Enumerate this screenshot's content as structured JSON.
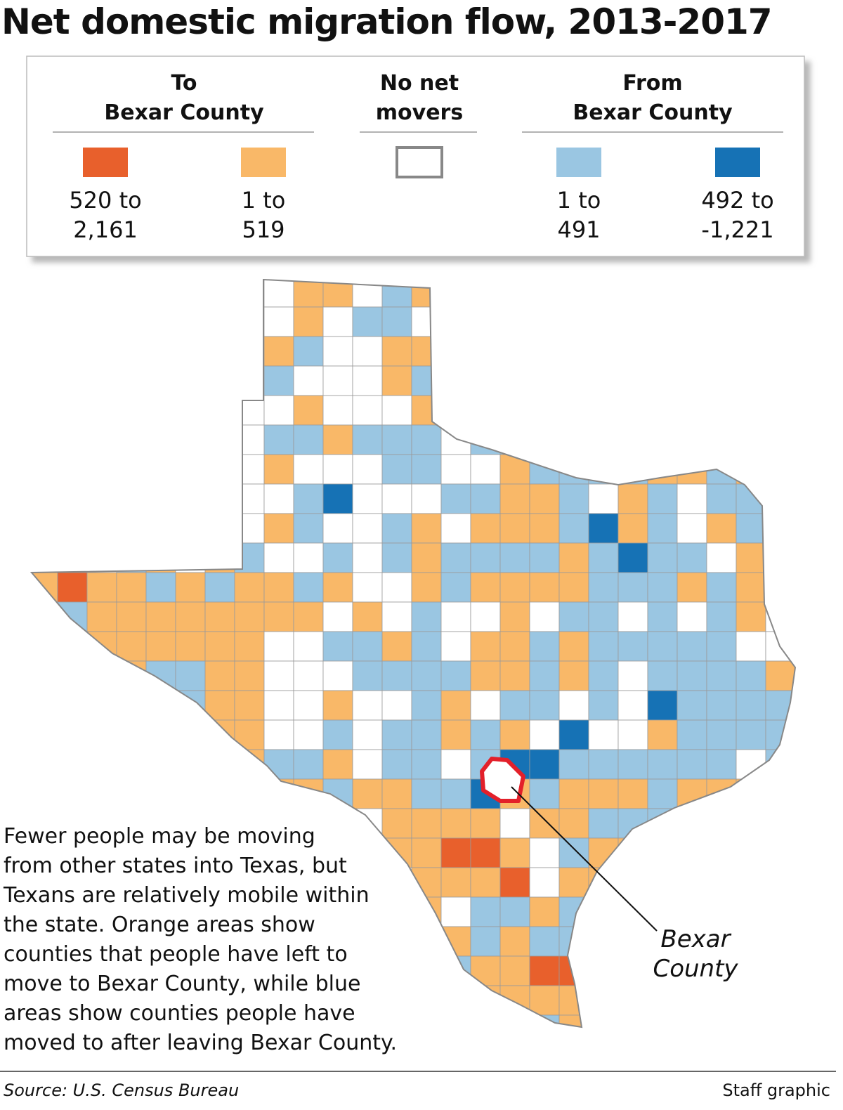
{
  "header": {
    "title": "Net domestic migration flow, 2013-2017"
  },
  "legend": {
    "groups": [
      {
        "heading": [
          "To",
          "Bexar County"
        ],
        "items": [
          {
            "label": [
              "520 to",
              "2,161"
            ],
            "color": "#e8602c"
          },
          {
            "label": [
              "1 to",
              "519"
            ],
            "color": "#f9b868"
          }
        ]
      },
      {
        "heading": [
          "No net",
          "movers"
        ],
        "items": [
          {
            "color": "#ffffff"
          }
        ]
      },
      {
        "heading": [
          "From",
          "Bexar County"
        ],
        "items": [
          {
            "label": [
              "1 to",
              "491"
            ],
            "color": "#9ac6e2"
          },
          {
            "label": [
              "492 to",
              "-1,221"
            ],
            "color": "#1672b5"
          }
        ]
      }
    ]
  },
  "map": {
    "annotation": [
      "Bexar",
      "County"
    ]
  },
  "description": [
    "Fewer people may be moving",
    "from other states into Texas, but",
    "Texans are relatively mobile within",
    "the state. Orange areas show",
    "counties that people have left to",
    "move to Bexar County, while blue",
    "areas show counties people have",
    "moved to after leaving Bexar County."
  ],
  "footer": {
    "source": "Source: U.S. Census Bureau",
    "credit": "Staff graphic"
  }
}
